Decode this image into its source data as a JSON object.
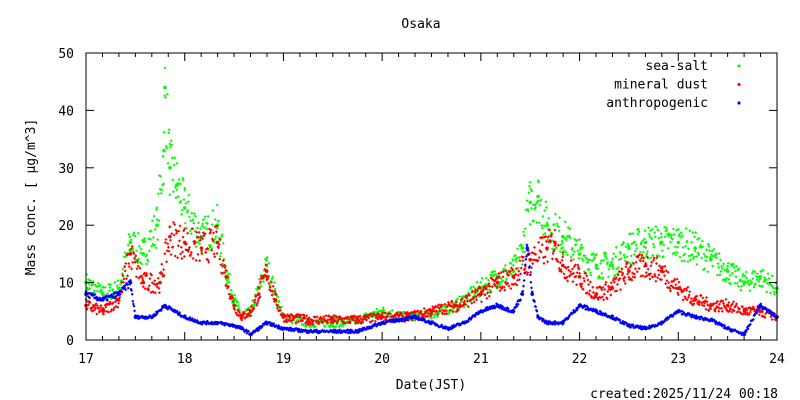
{
  "chart_data": {
    "type": "scatter",
    "title": "Osaka",
    "xlabel": "Date(JST)",
    "ylabel": "Mass conc. [ μg/m^3]",
    "xlim": [
      17,
      24
    ],
    "ylim": [
      0,
      50
    ],
    "xticks": [
      "17",
      "18",
      "19",
      "20",
      "21",
      "22",
      "23",
      "24"
    ],
    "yticks": [
      "0",
      "10",
      "20",
      "30",
      "40",
      "50"
    ],
    "legend_position": "top-right",
    "series": [
      {
        "name": "sea-salt",
        "color": "#00ff00",
        "x": [
          17,
          17.17,
          17.33,
          17.45,
          17.58,
          17.72,
          17.79,
          17.8,
          17.85,
          17.92,
          18.0,
          18.17,
          18.33,
          18.42,
          18.5,
          18.58,
          18.67,
          18.75,
          18.83,
          18.92,
          19.0,
          19.25,
          19.5,
          19.75,
          20.0,
          20.25,
          20.5,
          20.75,
          21.0,
          21.17,
          21.33,
          21.42,
          21.5,
          21.58,
          21.67,
          21.83,
          22.0,
          22.17,
          22.33,
          22.5,
          22.67,
          22.83,
          23.0,
          23.17,
          23.33,
          23.5,
          23.67,
          23.83,
          24.0
        ],
        "y": [
          10,
          8,
          9,
          17,
          15,
          20,
          33,
          44,
          30,
          27,
          23,
          18,
          20,
          12,
          7,
          4,
          5,
          9,
          13,
          8,
          4,
          3,
          3,
          3.5,
          5,
          4,
          4.5,
          6,
          9,
          11,
          12,
          16,
          24,
          25,
          20,
          18,
          15,
          13,
          13,
          16,
          17,
          17,
          17,
          16,
          14,
          12,
          10,
          11,
          9
        ]
      },
      {
        "name": "mineral dust",
        "color": "#ff0000",
        "x": [
          17,
          17.17,
          17.33,
          17.45,
          17.58,
          17.75,
          17.85,
          18.0,
          18.17,
          18.33,
          18.42,
          18.5,
          18.58,
          18.67,
          18.75,
          18.83,
          18.92,
          19.0,
          19.25,
          19.5,
          19.75,
          20.0,
          20.25,
          20.5,
          20.75,
          21.0,
          21.17,
          21.33,
          21.5,
          21.67,
          21.75,
          21.83,
          22.0,
          22.17,
          22.33,
          22.5,
          22.67,
          22.83,
          23.0,
          23.17,
          23.33,
          23.5,
          23.67,
          23.83,
          24.0
        ],
        "y": [
          6,
          5,
          7,
          15,
          10,
          10,
          18,
          17,
          16,
          17,
          11,
          6,
          4,
          5,
          8,
          12,
          7,
          4,
          3.5,
          3.5,
          3.5,
          4,
          4,
          5,
          6,
          8,
          10,
          11,
          14,
          16,
          17,
          13,
          11,
          8,
          9,
          12,
          13,
          12,
          9,
          7,
          6,
          6,
          5,
          5,
          4
        ]
      },
      {
        "name": "anthropogenic",
        "color": "#0000ff",
        "x": [
          17,
          17.17,
          17.33,
          17.45,
          17.5,
          17.67,
          17.8,
          17.9,
          18.0,
          18.17,
          18.33,
          18.5,
          18.58,
          18.67,
          18.75,
          18.83,
          19.0,
          19.25,
          19.5,
          19.75,
          20.0,
          20.17,
          20.33,
          20.5,
          20.67,
          20.83,
          21.0,
          21.17,
          21.33,
          21.42,
          21.47,
          21.52,
          21.58,
          21.67,
          21.83,
          22.0,
          22.17,
          22.33,
          22.5,
          22.67,
          22.83,
          23.0,
          23.17,
          23.33,
          23.5,
          23.67,
          23.83,
          24.0
        ],
        "y": [
          8,
          7,
          8,
          10,
          4,
          4,
          6,
          5,
          4,
          3,
          3,
          2.5,
          2,
          1,
          2,
          3,
          2,
          1.5,
          1.5,
          1.5,
          3,
          3.5,
          4,
          3,
          2,
          3,
          5,
          6,
          5,
          8,
          16,
          8,
          4,
          3,
          3,
          6,
          5,
          4,
          2.5,
          2,
          3,
          5,
          4,
          3.5,
          2,
          1,
          6,
          4
        ]
      }
    ]
  },
  "footer": {
    "created": "created:2025/11/24 00:18"
  }
}
